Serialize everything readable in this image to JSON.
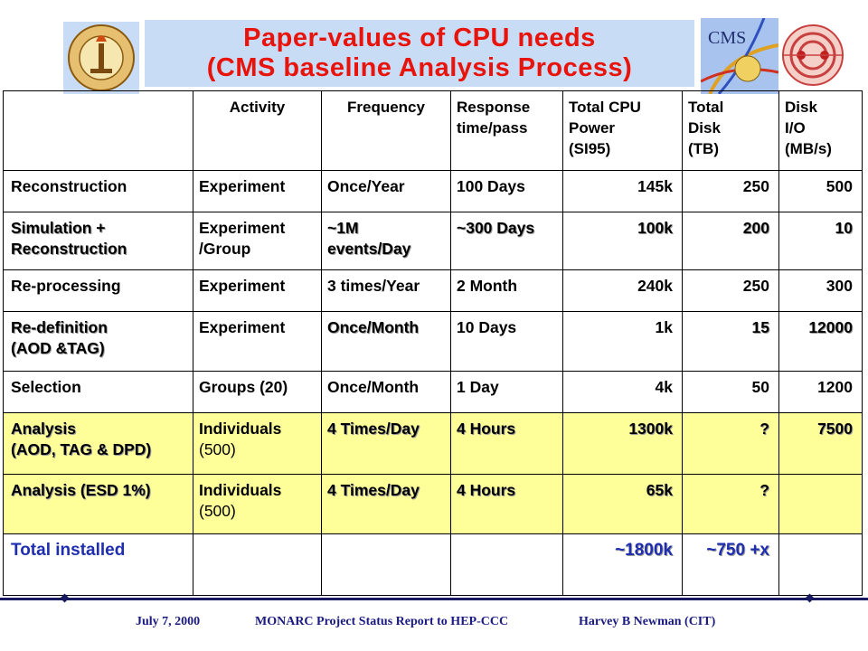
{
  "title": {
    "line1": "Paper-values of CPU needs",
    "line2": "(CMS baseline Analysis Process)"
  },
  "logos": {
    "left": "caltech-seal-icon",
    "cms_text": "CMS",
    "right": "lhc-ring-icon"
  },
  "table": {
    "headers": [
      [
        ""
      ],
      [
        "Activity"
      ],
      [
        "Frequency"
      ],
      [
        "Response",
        "time/pass"
      ],
      [
        "Total CPU",
        "Power",
        "(SI95)"
      ],
      [
        "Total",
        "Disk",
        "(TB)"
      ],
      [
        "Disk",
        "I/O",
        "(MB/s)"
      ]
    ],
    "rows": [
      {
        "process": [
          "Reconstruction"
        ],
        "activity": [
          "Experiment"
        ],
        "frequency": [
          "Once/Year"
        ],
        "response": [
          "100 Days"
        ],
        "cpu": "145k",
        "disk": "250",
        "io": "500"
      },
      {
        "process": [
          "Simulation +",
          "Reconstruction"
        ],
        "activity": [
          "Experiment",
          "/Group"
        ],
        "frequency": [
          "~1M",
          "events/Day"
        ],
        "response": [
          "~300 Days"
        ],
        "cpu": "100k",
        "disk": "200",
        "io": "10"
      },
      {
        "process": [
          "Re-processing"
        ],
        "activity": [
          "Experiment"
        ],
        "frequency": [
          "3 times/Year"
        ],
        "response": [
          "2 Month"
        ],
        "cpu": "240k",
        "disk": "250",
        "io": "300"
      },
      {
        "process": [
          "Re-definition",
          "(AOD &TAG)"
        ],
        "activity": [
          "Experiment"
        ],
        "frequency": [
          "Once/Month"
        ],
        "response": [
          "10 Days"
        ],
        "cpu": "1k",
        "disk": "15",
        "io": "12000"
      },
      {
        "process": [
          "Selection"
        ],
        "activity": [
          "Groups (20)"
        ],
        "frequency": [
          "Once/Month"
        ],
        "response": [
          "1 Day"
        ],
        "cpu": "4k",
        "disk": "50",
        "io": "1200"
      },
      {
        "process": [
          "Analysis",
          "(AOD, TAG & DPD)"
        ],
        "activity": [
          "Individuals",
          "(500)"
        ],
        "frequency": [
          "4 Times/Day"
        ],
        "response": [
          "4 Hours"
        ],
        "cpu": "1300k",
        "disk": "?",
        "io": "7500"
      },
      {
        "process": [
          "Analysis (ESD 1%)"
        ],
        "activity": [
          "Individuals",
          "(500)"
        ],
        "frequency": [
          "4 Times/Day"
        ],
        "response": [
          "4 Hours"
        ],
        "cpu": "65k",
        "disk": "?",
        "io": ""
      },
      {
        "process": [
          "Total installed"
        ],
        "activity": [
          ""
        ],
        "frequency": [
          ""
        ],
        "response": [
          ""
        ],
        "cpu": "~1800k",
        "disk": "~750 +x",
        "io": ""
      }
    ]
  },
  "footer": {
    "date": "July 7, 2000",
    "report": "MONARC Project Status Report to HEP-CCC",
    "author": "Harvey B Newman (CIT)"
  }
}
